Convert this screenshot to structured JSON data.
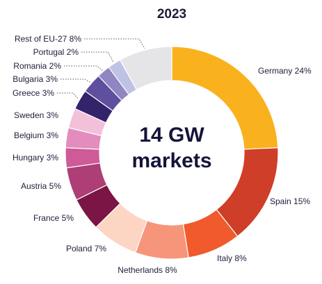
{
  "chart_data": {
    "type": "pie",
    "variant": "donut",
    "title": "2023",
    "center_label": [
      "14 GW",
      "markets"
    ],
    "slices": [
      {
        "label": "Germany 24%",
        "value": 24,
        "color": "#f9b21d"
      },
      {
        "label": "Spain 15%",
        "value": 15,
        "color": "#cf3e28"
      },
      {
        "label": "Italy 8%",
        "value": 8,
        "color": "#f05a2c"
      },
      {
        "label": "Netherlands 8%",
        "value": 8,
        "color": "#f7957a"
      },
      {
        "label": "Poland 7%",
        "value": 7,
        "color": "#fcd6c3"
      },
      {
        "label": "France 5%",
        "value": 5,
        "color": "#7a1545"
      },
      {
        "label": "Austria 5%",
        "value": 5,
        "color": "#ad3e76"
      },
      {
        "label": "Hungary 3%",
        "value": 3,
        "color": "#cf5a98"
      },
      {
        "label": "Belgium 3%",
        "value": 3,
        "color": "#e28dbd"
      },
      {
        "label": "Sweden 3%",
        "value": 3,
        "color": "#f3c0da"
      },
      {
        "label": "Greece 3%",
        "value": 3,
        "color": "#32236b"
      },
      {
        "label": "Bulgaria 3%",
        "value": 3,
        "color": "#5f4f9e"
      },
      {
        "label": "Romania 2%",
        "value": 2,
        "color": "#9086c2"
      },
      {
        "label": "Portugal 2%",
        "value": 2,
        "color": "#bec3e6"
      },
      {
        "label": "Rest of EU-27 8%",
        "value": 8,
        "color": "#e5e5e8"
      }
    ]
  }
}
